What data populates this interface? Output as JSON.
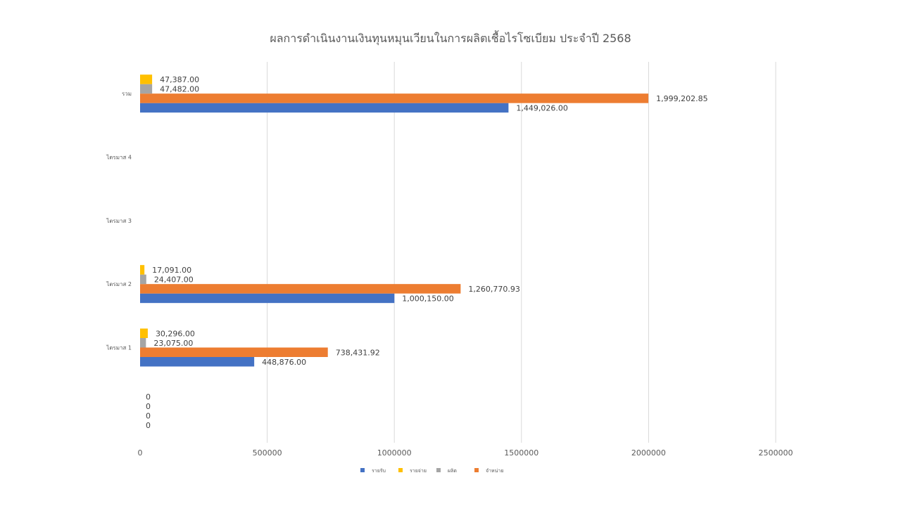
{
  "chart_data": {
    "type": "bar",
    "orientation": "horizontal",
    "title": "ผลการดำเนินงานเงินทุนหมุนเวียนในการผลิตเชื้อไรโซเบียม ประจำปี 2568",
    "xlabel": "",
    "ylabel": "",
    "xlim": [
      0,
      2500000
    ],
    "x_ticks": [
      "0",
      "500000",
      "1000000",
      "1500000",
      "2000000",
      "2500000"
    ],
    "grid": true,
    "legend_position": "bottom",
    "categories": [
      "",
      "ไตรมาส 1",
      "ไตรมาส 2",
      "ไตรมาส 3",
      "ไตรมาส 4",
      "รวม"
    ],
    "series": [
      {
        "name": "รายรับ",
        "color": "#4472C4",
        "values": [
          0,
          448876.0,
          1000150.0,
          null,
          null,
          1449026.0
        ],
        "labels": [
          "0",
          "448,876.00",
          "1,000,150.00",
          "",
          "",
          "1,449,026.00"
        ]
      },
      {
        "name": "จำหน่าย",
        "color": "#ED7D31",
        "values": [
          0,
          738431.92,
          1260770.93,
          null,
          null,
          1999202.85
        ],
        "labels": [
          "0",
          "738,431.92",
          "1,260,770.93",
          "",
          "",
          "1,999,202.85"
        ]
      },
      {
        "name": "ผลิต",
        "color": "#A5A5A5",
        "values": [
          0,
          23075.0,
          24407.0,
          null,
          null,
          47482.0
        ],
        "labels": [
          "0",
          "23,075.00",
          "24,407.00",
          "",
          "",
          "47,482.00"
        ]
      },
      {
        "name": "รายจ่าย",
        "color": "#FFC000",
        "values": [
          0,
          30296.0,
          17091.0,
          null,
          null,
          47387.0
        ],
        "labels": [
          "0",
          "30,296.00",
          "17,091.00",
          "",
          "",
          "47,387.00"
        ]
      }
    ],
    "legend_order": [
      "รายรับ",
      "รายจ่าย",
      "ผลิต",
      "จำหน่าย"
    ]
  }
}
